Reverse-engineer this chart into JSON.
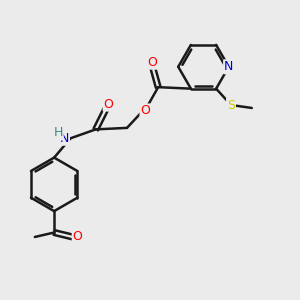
{
  "background_color": "#ebebeb",
  "bond_color": "#1a1a1a",
  "atom_colors": {
    "N": "#0000cd",
    "O": "#ff0000",
    "S": "#cccc00",
    "H": "#3a8a8a",
    "C": "#1a1a1a"
  },
  "figsize": [
    3.0,
    3.0
  ],
  "dpi": 100,
  "xlim": [
    0,
    10
  ],
  "ylim": [
    0,
    10
  ]
}
